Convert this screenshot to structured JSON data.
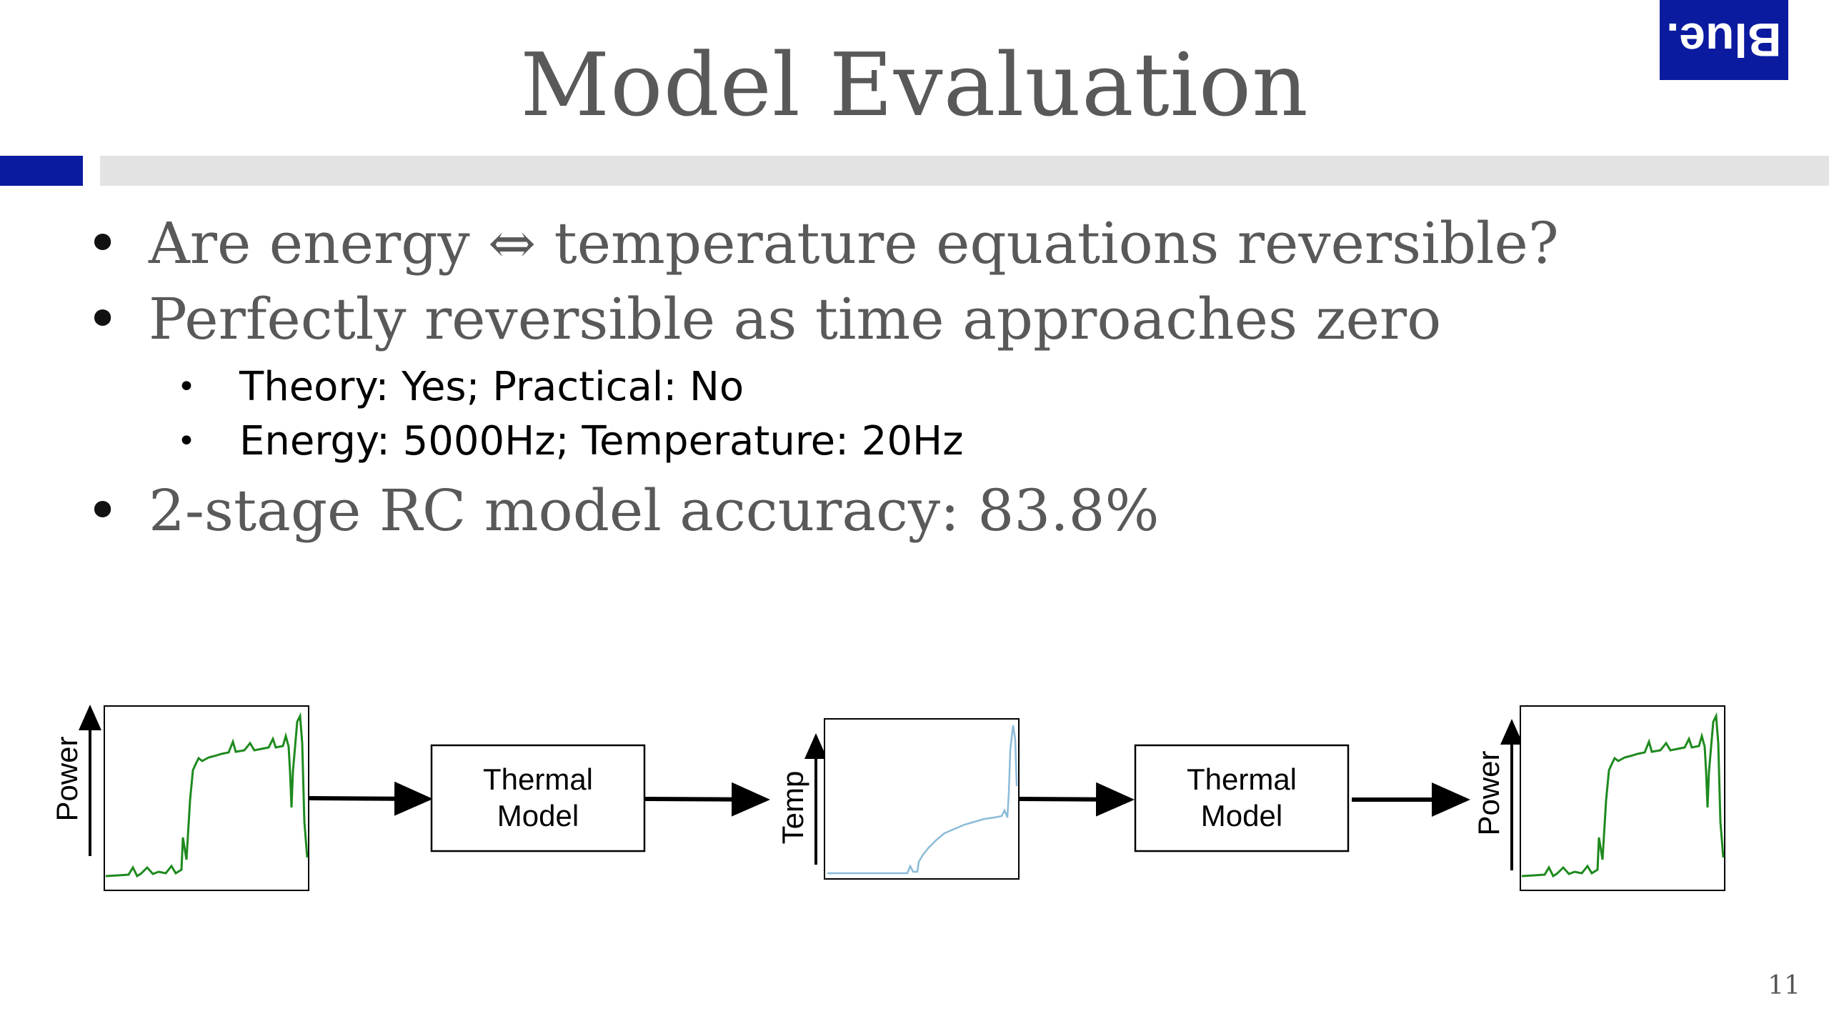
{
  "slide": {
    "title": "Model Evaluation",
    "logo_text": "Blue.",
    "page_number": "11"
  },
  "bullets": [
    {
      "text": "Are energy ⇔ temperature equations reversible?"
    },
    {
      "text": "Perfectly reversible as time approaches zero",
      "sub": [
        {
          "text": "Theory: Yes; Practical: No"
        },
        {
          "text": "Energy: 5000Hz; Temperature: 20Hz"
        }
      ]
    },
    {
      "text": "2-stage RC model accuracy: 83.8%"
    }
  ],
  "flow": {
    "colors": {
      "power": "#1e8a1e",
      "temp": "#8bbbd9",
      "brand": "#0b1b9f"
    },
    "power_in_label": "Power",
    "model1_label": [
      "Thermal",
      "Model"
    ],
    "temp_label": "Temp",
    "model2_label": [
      "Thermal",
      "Model"
    ],
    "power_out_label": "Power"
  }
}
